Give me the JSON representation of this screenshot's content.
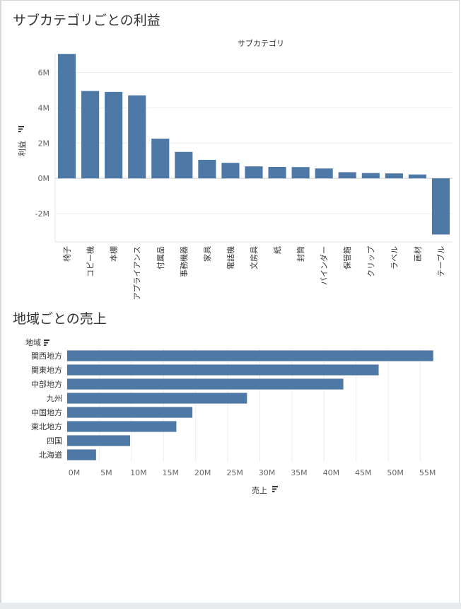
{
  "page": {
    "chart1_title": "サブカテゴリごとの利益",
    "chart2_title": "地域ごとの売上"
  },
  "colors": {
    "bar": "#4e79a7",
    "grid": "#eeeeee",
    "zero": "#cccccc"
  },
  "icons": {
    "sort": "sort-icon"
  },
  "chart_data": [
    {
      "type": "bar",
      "orientation": "vertical",
      "title": "サブカテゴリごとの利益",
      "header": "サブカテゴリ",
      "ylabel": "利益",
      "categories": [
        "椅子",
        "コピー機",
        "本棚",
        "アプライアンス",
        "付属品",
        "事務機器",
        "家具",
        "電話機",
        "文房具",
        "紙",
        "封筒",
        "バインダー",
        "保管箱",
        "クリップ",
        "ラベル",
        "画材",
        "テーブル"
      ],
      "values": [
        7050000,
        4950000,
        4900000,
        4700000,
        2250000,
        1500000,
        1050000,
        880000,
        680000,
        650000,
        640000,
        560000,
        350000,
        300000,
        280000,
        220000,
        -3180000
      ],
      "yticks": [
        {
          "value": 6000000,
          "label": "6M"
        },
        {
          "value": 4000000,
          "label": "4M"
        },
        {
          "value": 2000000,
          "label": "2M"
        },
        {
          "value": 0,
          "label": "0M"
        },
        {
          "value": -2000000,
          "label": "-2M"
        }
      ],
      "ylim": [
        -3600000,
        7100000
      ],
      "grid": true
    },
    {
      "type": "bar",
      "orientation": "horizontal",
      "title": "地域ごとの売上",
      "header": "地域",
      "xlabel": "売上",
      "categories": [
        "関西地方",
        "関東地方",
        "中部地方",
        "九州",
        "中国地方",
        "東北地方",
        "四国",
        "北海道"
      ],
      "values": [
        57000000,
        48500000,
        43000000,
        28000000,
        19500000,
        17000000,
        9800000,
        4500000
      ],
      "xticks": [
        {
          "value": 0,
          "label": "0M"
        },
        {
          "value": 5000000,
          "label": "5M"
        },
        {
          "value": 10000000,
          "label": "10M"
        },
        {
          "value": 15000000,
          "label": "15M"
        },
        {
          "value": 20000000,
          "label": "20M"
        },
        {
          "value": 25000000,
          "label": "25M"
        },
        {
          "value": 30000000,
          "label": "30M"
        },
        {
          "value": 35000000,
          "label": "35M"
        },
        {
          "value": 40000000,
          "label": "40M"
        },
        {
          "value": 45000000,
          "label": "45M"
        },
        {
          "value": 50000000,
          "label": "50M"
        },
        {
          "value": 55000000,
          "label": "55M"
        }
      ],
      "xlim": [
        0,
        60000000
      ],
      "grid": true
    }
  ]
}
